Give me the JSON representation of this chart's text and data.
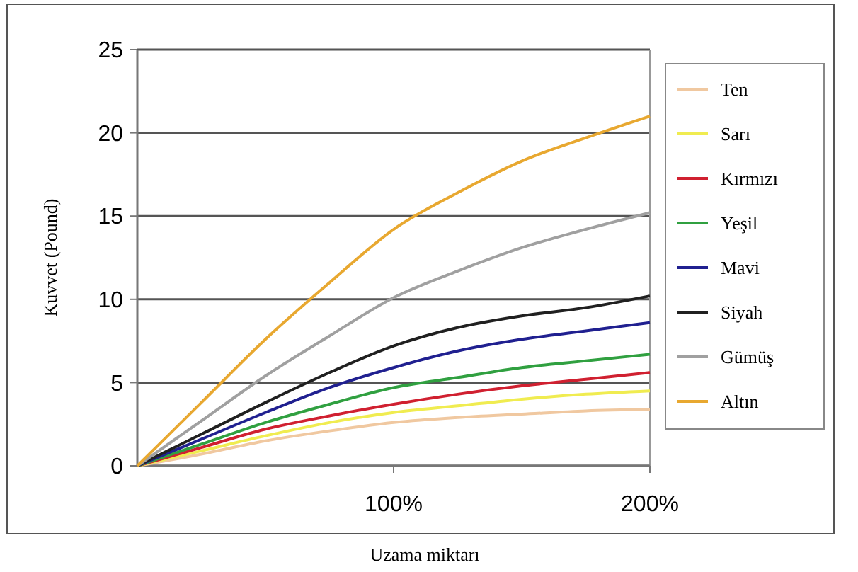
{
  "chart_data": {
    "type": "line",
    "xlabel": "Uzama miktarı",
    "ylabel": "Kuvvet (Pound)",
    "x": [
      0,
      25,
      50,
      75,
      100,
      125,
      150,
      175,
      200
    ],
    "xlim": [
      0,
      200
    ],
    "xticks": [
      {
        "value": 100,
        "label": "100%"
      },
      {
        "value": 200,
        "label": "200%"
      }
    ],
    "ylim": [
      0,
      25
    ],
    "yticks": [
      0,
      5,
      10,
      15,
      20,
      25
    ],
    "grid": "y",
    "legend": "right",
    "marker": "none",
    "line_style": "solid",
    "series": [
      {
        "name": "Ten",
        "color": "#f0c8a0",
        "values": [
          0,
          0.7,
          1.5,
          2.1,
          2.6,
          2.9,
          3.1,
          3.3,
          3.4
        ]
      },
      {
        "name": "Sarı",
        "color": "#f0ec50",
        "values": [
          0,
          0.9,
          1.8,
          2.6,
          3.2,
          3.6,
          4.0,
          4.3,
          4.5
        ]
      },
      {
        "name": "Kırmızı",
        "color": "#d02030",
        "values": [
          0,
          1.1,
          2.2,
          3.0,
          3.7,
          4.3,
          4.8,
          5.2,
          5.6
        ]
      },
      {
        "name": "Yeşil",
        "color": "#30a040",
        "values": [
          0,
          1.3,
          2.6,
          3.7,
          4.7,
          5.3,
          5.9,
          6.3,
          6.7
        ]
      },
      {
        "name": "Mavi",
        "color": "#202090",
        "values": [
          0,
          1.6,
          3.2,
          4.7,
          5.9,
          6.9,
          7.6,
          8.1,
          8.6
        ]
      },
      {
        "name": "Siyah",
        "color": "#202020",
        "values": [
          0,
          1.9,
          3.8,
          5.6,
          7.2,
          8.3,
          9.0,
          9.5,
          10.2
        ]
      },
      {
        "name": "Gümüş",
        "color": "#a0a0a0",
        "values": [
          0,
          2.7,
          5.4,
          7.8,
          10.1,
          11.7,
          13.1,
          14.2,
          15.2
        ]
      },
      {
        "name": "Altın",
        "color": "#e8a830",
        "values": [
          0,
          3.8,
          7.6,
          11.0,
          14.2,
          16.4,
          18.3,
          19.7,
          21.0
        ]
      }
    ]
  }
}
